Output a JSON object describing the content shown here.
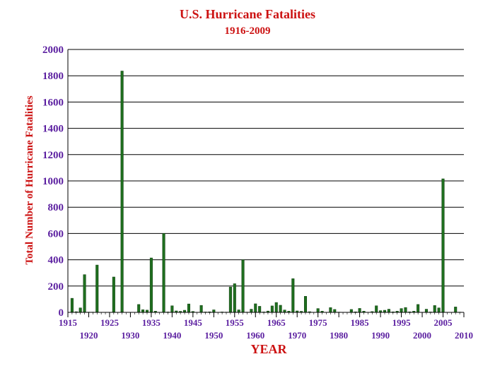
{
  "chart_data": {
    "type": "bar",
    "title": "U.S. Hurricane Fatalities",
    "subtitle": "1916-2009",
    "xlabel": "YEAR",
    "ylabel": "Total Number of Hurricane Fatalities",
    "ylim": [
      0,
      2000
    ],
    "yticks": [
      0,
      200,
      400,
      600,
      800,
      1000,
      1200,
      1400,
      1600,
      1800,
      2000
    ],
    "xlim": [
      1915,
      2010
    ],
    "xticks_lower": [
      "1915",
      "1925",
      "1935",
      "1945",
      "1955",
      "1965",
      "1975",
      "1985",
      "1995",
      "2005"
    ],
    "xticks_upper": [
      "1920",
      "1930",
      "1940",
      "1950",
      "1960",
      "1970",
      "1980",
      "1990",
      "2000",
      "2010"
    ],
    "grid": "horizontal",
    "colors": {
      "title": "#cc1111",
      "ylabel": "#cc1111",
      "xlabel": "#cc1111",
      "tick_text": "#5b1fa0",
      "bar": "#1f6f1f",
      "bar_edge": "#0a3a0a",
      "grid": "#000000"
    },
    "x": [
      1916,
      1917,
      1918,
      1919,
      1920,
      1921,
      1922,
      1923,
      1924,
      1925,
      1926,
      1927,
      1928,
      1929,
      1930,
      1931,
      1932,
      1933,
      1934,
      1935,
      1936,
      1937,
      1938,
      1939,
      1940,
      1941,
      1942,
      1943,
      1944,
      1945,
      1946,
      1947,
      1948,
      1949,
      1950,
      1951,
      1952,
      1953,
      1954,
      1955,
      1956,
      1957,
      1958,
      1959,
      1960,
      1961,
      1962,
      1963,
      1964,
      1965,
      1966,
      1967,
      1968,
      1969,
      1970,
      1971,
      1972,
      1973,
      1974,
      1975,
      1976,
      1977,
      1978,
      1979,
      1980,
      1981,
      1982,
      1983,
      1984,
      1985,
      1986,
      1987,
      1988,
      1989,
      1990,
      1991,
      1992,
      1993,
      1994,
      1995,
      1996,
      1997,
      1998,
      1999,
      2000,
      2001,
      2002,
      2003,
      2004,
      2005,
      2006,
      2007,
      2008,
      2009
    ],
    "values": [
      107,
      5,
      34,
      287,
      2,
      2,
      360,
      0,
      0,
      0,
      269,
      0,
      1836,
      0,
      0,
      0,
      60,
      20,
      17,
      414,
      9,
      0,
      600,
      3,
      50,
      11,
      8,
      16,
      64,
      7,
      0,
      53,
      3,
      4,
      19,
      0,
      3,
      2,
      193,
      218,
      19,
      400,
      2,
      24,
      65,
      46,
      3,
      10,
      49,
      75,
      54,
      18,
      9,
      256,
      11,
      8,
      122,
      5,
      1,
      29,
      9,
      0,
      36,
      22,
      2,
      0,
      0,
      22,
      4,
      30,
      9,
      0,
      6,
      50,
      13,
      16,
      24,
      4,
      9,
      29,
      37,
      4,
      9,
      60,
      0,
      24,
      3,
      52,
      34,
      1016,
      0,
      1,
      41,
      2
    ]
  }
}
